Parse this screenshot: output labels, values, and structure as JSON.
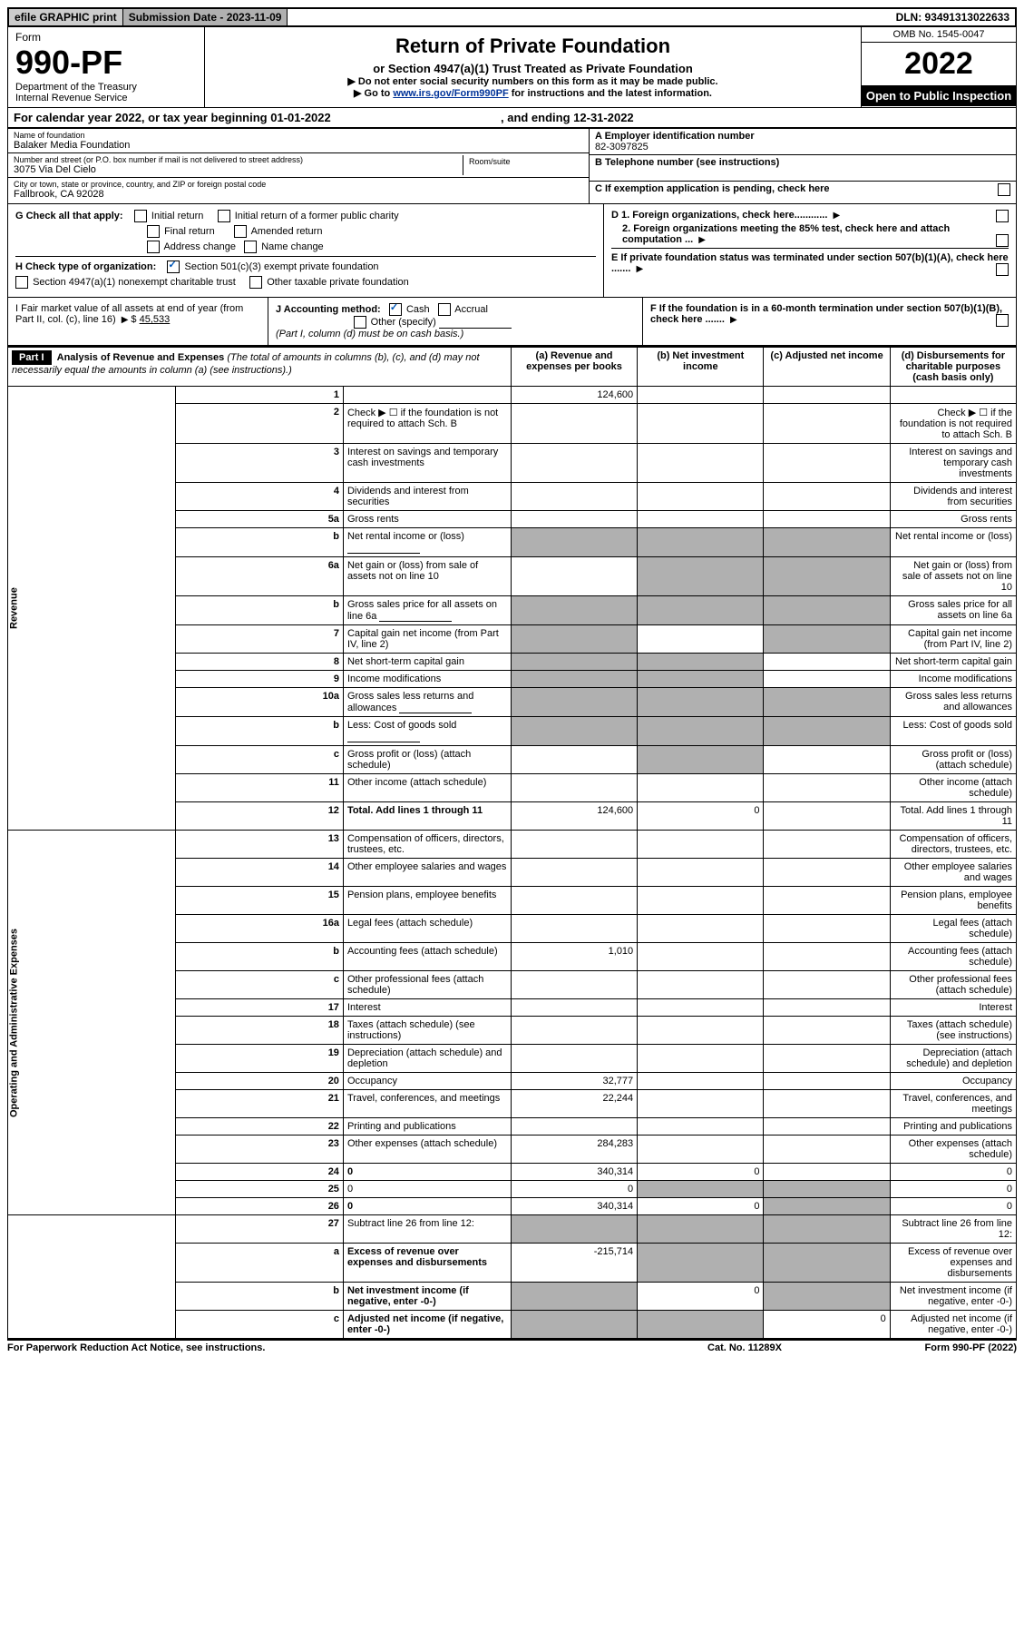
{
  "topbar": {
    "efile": "efile GRAPHIC print",
    "submission": "Submission Date - 2023-11-09",
    "dln": "DLN: 93491313022633"
  },
  "header": {
    "form_label": "Form",
    "form_number": "990-PF",
    "dept": "Department of the Treasury",
    "irs": "Internal Revenue Service",
    "title": "Return of Private Foundation",
    "subtitle": "or Section 4947(a)(1) Trust Treated as Private Foundation",
    "instr1": "▶ Do not enter social security numbers on this form as it may be made public.",
    "instr2_pre": "▶ Go to ",
    "instr2_link": "www.irs.gov/Form990PF",
    "instr2_post": " for instructions and the latest information.",
    "omb": "OMB No. 1545-0047",
    "year": "2022",
    "inspect": "Open to Public Inspection"
  },
  "calyear": {
    "pre": "For calendar year 2022, or tax year beginning ",
    "begin": "01-01-2022",
    "mid": " , and ending ",
    "end": "12-31-2022"
  },
  "entity": {
    "name_lbl": "Name of foundation",
    "name": "Balaker Media Foundation",
    "addr_lbl": "Number and street (or P.O. box number if mail is not delivered to street address)",
    "addr": "3075 Via Del Cielo",
    "room_lbl": "Room/suite",
    "city_lbl": "City or town, state or province, country, and ZIP or foreign postal code",
    "city": "Fallbrook, CA  92028",
    "ein_lbl": "A Employer identification number",
    "ein": "82-3097825",
    "tel_lbl": "B Telephone number (see instructions)",
    "c_lbl": "C If exemption application is pending, check here"
  },
  "checks": {
    "g_lbl": "G Check all that apply:",
    "g_items": [
      "Initial return",
      "Final return",
      "Address change",
      "Initial return of a former public charity",
      "Amended return",
      "Name change"
    ],
    "h_lbl": "H Check type of organization:",
    "h1": "Section 501(c)(3) exempt private foundation",
    "h2": "Section 4947(a)(1) nonexempt charitable trust",
    "h3": "Other taxable private foundation",
    "d1": "D 1. Foreign organizations, check here............",
    "d2": "2. Foreign organizations meeting the 85% test, check here and attach computation ...",
    "e": "E  If private foundation status was terminated under section 507(b)(1)(A), check here .......",
    "f": "F  If the foundation is in a 60-month termination under section 507(b)(1)(B), check here .......",
    "i_lbl": "I Fair market value of all assets at end of year (from Part II, col. (c), line 16)",
    "i_val": "45,533",
    "j_lbl": "J Accounting method:",
    "j_cash": "Cash",
    "j_accrual": "Accrual",
    "j_other": "Other (specify)",
    "j_note": "(Part I, column (d) must be on cash basis.)"
  },
  "part1": {
    "label": "Part I",
    "title": "Analysis of Revenue and Expenses",
    "title_note": " (The total of amounts in columns (b), (c), and (d) may not necessarily equal the amounts in column (a) (see instructions).)",
    "col_a": "(a)  Revenue and expenses per books",
    "col_b": "(b)  Net investment income",
    "col_c": "(c)  Adjusted net income",
    "col_d": "(d)  Disbursements for charitable purposes (cash basis only)",
    "revenue_label": "Revenue",
    "expenses_label": "Operating and Administrative Expenses"
  },
  "rows_revenue": [
    {
      "n": "1",
      "d": "",
      "a": "124,600",
      "b": "",
      "c": "",
      "grey_bcd": true
    },
    {
      "n": "2",
      "d": "Check ▶ ☐ if the foundation is not required to attach Sch. B",
      "noval": true
    },
    {
      "n": "3",
      "d": "Interest on savings and temporary cash investments"
    },
    {
      "n": "4",
      "d": "Dividends and interest from securities"
    },
    {
      "n": "5a",
      "d": "Gross rents"
    },
    {
      "n": "b",
      "d": "Net rental income or (loss)",
      "inline_box": true,
      "grey_all": true
    },
    {
      "n": "6a",
      "d": "Net gain or (loss) from sale of assets not on line 10",
      "grey_bcd": true
    },
    {
      "n": "b",
      "d": "Gross sales price for all assets on line 6a",
      "inline_box": true,
      "grey_all": true
    },
    {
      "n": "7",
      "d": "Capital gain net income (from Part IV, line 2)",
      "grey_acd_keep_b": true
    },
    {
      "n": "8",
      "d": "Net short-term capital gain",
      "grey_abd_keep_c": true
    },
    {
      "n": "9",
      "d": "Income modifications",
      "grey_abd_keep_c": true
    },
    {
      "n": "10a",
      "d": "Gross sales less returns and allowances",
      "inline_box": true,
      "grey_all": true
    },
    {
      "n": "b",
      "d": "Less: Cost of goods sold",
      "inline_box": true,
      "grey_all": true
    },
    {
      "n": "c",
      "d": "Gross profit or (loss) (attach schedule)",
      "grey_bd": true
    },
    {
      "n": "11",
      "d": "Other income (attach schedule)"
    },
    {
      "n": "12",
      "d": "Total. Add lines 1 through 11",
      "bold": true,
      "a": "124,600",
      "b": "0",
      "grey_d": true
    }
  ],
  "rows_expenses": [
    {
      "n": "13",
      "d": "Compensation of officers, directors, trustees, etc."
    },
    {
      "n": "14",
      "d": "Other employee salaries and wages"
    },
    {
      "n": "15",
      "d": "Pension plans, employee benefits"
    },
    {
      "n": "16a",
      "d": "Legal fees (attach schedule)"
    },
    {
      "n": "b",
      "d": "Accounting fees (attach schedule)",
      "a": "1,010"
    },
    {
      "n": "c",
      "d": "Other professional fees (attach schedule)"
    },
    {
      "n": "17",
      "d": "Interest"
    },
    {
      "n": "18",
      "d": "Taxes (attach schedule) (see instructions)"
    },
    {
      "n": "19",
      "d": "Depreciation (attach schedule) and depletion",
      "grey_d": true
    },
    {
      "n": "20",
      "d": "Occupancy",
      "a": "32,777"
    },
    {
      "n": "21",
      "d": "Travel, conferences, and meetings",
      "a": "22,244"
    },
    {
      "n": "22",
      "d": "Printing and publications"
    },
    {
      "n": "23",
      "d": "Other expenses (attach schedule)",
      "a": "284,283"
    },
    {
      "n": "24",
      "d": "0",
      "bold": true,
      "a": "340,314",
      "b": "0"
    },
    {
      "n": "25",
      "d": "0",
      "a": "0",
      "grey_bc": true
    },
    {
      "n": "26",
      "d": "0",
      "bold": true,
      "a": "340,314",
      "b": "0",
      "grey_c": true
    }
  ],
  "rows_bottom": [
    {
      "n": "27",
      "d": "Subtract line 26 from line 12:",
      "grey_all": true
    },
    {
      "n": "a",
      "d": "Excess of revenue over expenses and disbursements",
      "bold": true,
      "a": "-215,714",
      "grey_bcd": true
    },
    {
      "n": "b",
      "d": "Net investment income (if negative, enter -0-)",
      "bold": true,
      "b": "0",
      "grey_a": true,
      "grey_cd": true
    },
    {
      "n": "c",
      "d": "Adjusted net income (if negative, enter -0-)",
      "bold": true,
      "c": "0",
      "grey_a": true,
      "grey_b": true,
      "grey_d": true
    }
  ],
  "footer": {
    "left": "For Paperwork Reduction Act Notice, see instructions.",
    "mid": "Cat. No. 11289X",
    "right": "Form 990-PF (2022)"
  }
}
